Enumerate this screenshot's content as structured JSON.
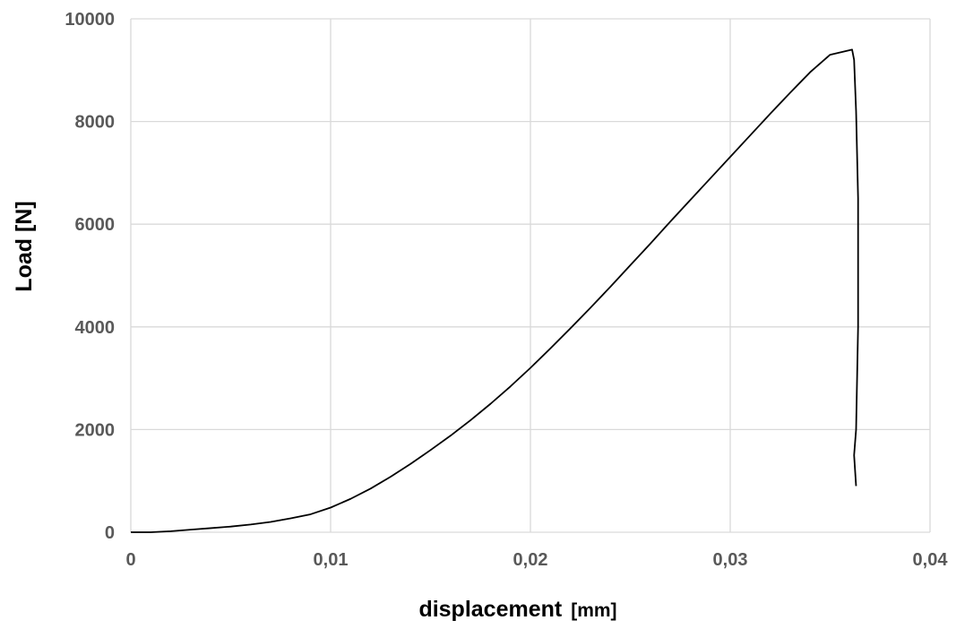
{
  "chart_data": {
    "type": "line",
    "title": "",
    "xlabel": "displacement",
    "xlabel_unit": "[mm]",
    "ylabel": "Load [N]",
    "xlim": [
      0,
      0.04
    ],
    "ylim": [
      0,
      10000
    ],
    "x_ticks": [
      0,
      0.01,
      0.02,
      0.03,
      0.04
    ],
    "x_tick_labels": [
      "0",
      "0,01",
      "0,02",
      "0,03",
      "0,04"
    ],
    "y_ticks": [
      0,
      2000,
      4000,
      6000,
      8000,
      10000
    ],
    "y_tick_labels": [
      "0",
      "2000",
      "4000",
      "6000",
      "8000",
      "10000"
    ],
    "grid": true,
    "legend": "none",
    "line_color": "#000000",
    "grid_color": "#d9d9d9",
    "series": [
      {
        "x": [
          0,
          0.001,
          0.002,
          0.003,
          0.004,
          0.005,
          0.006,
          0.007,
          0.008,
          0.009,
          0.01,
          0.011,
          0.012,
          0.013,
          0.014,
          0.015,
          0.016,
          0.017,
          0.018,
          0.019,
          0.02,
          0.021,
          0.022,
          0.023,
          0.024,
          0.025,
          0.026,
          0.027,
          0.028,
          0.029,
          0.03,
          0.031,
          0.032,
          0.033,
          0.034,
          0.035,
          0.0361,
          0.0362,
          0.0363,
          0.0364,
          0.0364,
          0.0363,
          0.0362,
          0.0363
        ],
        "y": [
          0,
          0,
          20,
          50,
          80,
          110,
          150,
          200,
          270,
          350,
          480,
          650,
          850,
          1080,
          1330,
          1600,
          1880,
          2180,
          2500,
          2840,
          3200,
          3580,
          3970,
          4370,
          4780,
          5200,
          5620,
          6050,
          6470,
          6890,
          7310,
          7730,
          8150,
          8560,
          8960,
          9300,
          9400,
          9200,
          8200,
          6500,
          4000,
          2000,
          1500,
          900
        ]
      }
    ]
  }
}
